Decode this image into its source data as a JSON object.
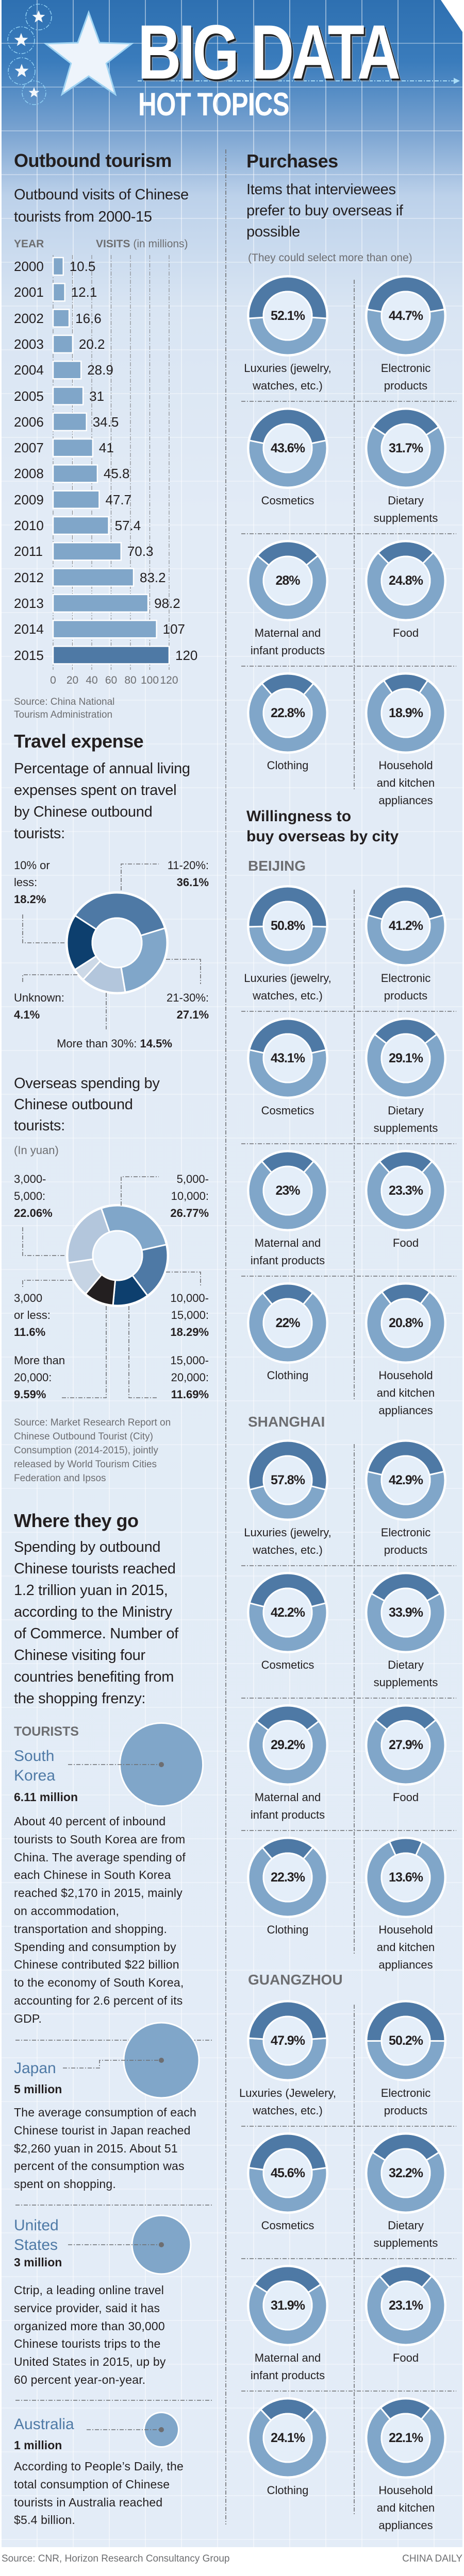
{
  "header": {
    "title": "BIG DATA",
    "subtitle": "HOT TOPICS",
    "icons": [
      "star-icon"
    ]
  },
  "colors": {
    "dark_segment": "#4e79a5",
    "light_segment": "#80a6c9",
    "bar": "#80a6c9",
    "bar_highlight": "#4e79a5",
    "country_name": "#4f7aa6",
    "bubble": "#80a6c9"
  },
  "outbound": {
    "heading": "Outbound tourism",
    "year_header": "YEAR",
    "visits_header": "VISITS",
    "visits_unit": "(in millions)",
    "source": "Source: China National\nTourism Administration"
  },
  "travel": {
    "heading": "Travel expense",
    "spending_title": "Overseas spending by\nChinese outbound\ntourists:",
    "spending_unit": "(In yuan)",
    "source": "Source: Market Research Report on\nChinese Outbound Tourist (City)\nConsumption (2014-2015), jointly\nreleased by World Tourism Cities\nFederation and Ipsos"
  },
  "where": {
    "heading": "Where they go",
    "intro": "Spending by outbound\nChinese tourists reached\n1.2 trillion yuan in 2015,\naccording to the Ministry\nof Commerce. Number of\nChinese visiting four\ncountries benefiting from\nthe shopping frenzy:",
    "tourists_label": "TOURISTS"
  },
  "purchases": {
    "heading": "Purchases",
    "note": "(They could select more than one)",
    "willingness_heading": "Willingness to\nbuy overseas by city"
  },
  "footer": {
    "source": "Source: CNR, Horizon Research Consultancy Group",
    "brand": "CHINA DAILY"
  },
  "chart_data": [
    {
      "type": "bar",
      "title": "Outbound visits of Chinese\ntourists from 2000-15",
      "ylabel": "VISITS (in millions)",
      "xlabel": "YEAR",
      "categories": [
        "2000",
        "2001",
        "2002",
        "2003",
        "2004",
        "2005",
        "2006",
        "2007",
        "2008",
        "2009",
        "2010",
        "2011",
        "2012",
        "2013",
        "2014",
        "2015"
      ],
      "values": [
        10.5,
        12.1,
        16.6,
        20.2,
        28.9,
        31,
        34.5,
        41,
        45.8,
        47.7,
        57.4,
        70.3,
        83.2,
        98.2,
        107,
        120
      ],
      "ticks": [
        "0",
        "20",
        "40",
        "60",
        "80",
        "100",
        "120"
      ],
      "xlim": [
        0,
        120
      ],
      "orientation": "horizontal",
      "grid": true
    },
    {
      "type": "pie",
      "donut": true,
      "title": "Percentage of annual living\nexpenses spent on travel\nby Chinese outbound\ntourists:",
      "items": [
        {
          "label": "11-20%:",
          "value": 36.1,
          "color": "#4e79a5"
        },
        {
          "label": "21-30%:",
          "value": 27.1,
          "color": "#80a6c9"
        },
        {
          "label": "More than 30%:",
          "value": 14.5,
          "color": "#b3c6dc"
        },
        {
          "label": "Unknown:",
          "value": 4.1,
          "color": "#cdd9e7"
        },
        {
          "label": "10% or\nless:",
          "value": 18.2,
          "color": "#0d3f6e"
        }
      ]
    },
    {
      "type": "pie",
      "donut": true,
      "title": "Overseas spending by Chinese outbound tourists:",
      "unit": "(In yuan)",
      "items": [
        {
          "label": "5,000-\n10,000:",
          "value": 26.77,
          "color": "#80a6c9"
        },
        {
          "label": "10,000-\n15,000:",
          "value": 18.29,
          "color": "#4e79a5"
        },
        {
          "label": "15,000-\n20,000:",
          "value": 11.69,
          "color": "#0d3f6e"
        },
        {
          "label": "More than\n20,000:",
          "value": 9.59,
          "color": "#231f20"
        },
        {
          "label": "3,000\nor less:",
          "value": 11.6,
          "color": "#c6d4e4"
        },
        {
          "label": "3,000-\n5,000:",
          "value": 22.06,
          "color": "#b3c6dc"
        }
      ]
    },
    {
      "type": "pie",
      "title": "Items that interviewees\nprefer to buy overseas if\npossible",
      "items": [
        {
          "label": "Luxuries (jewelry,\nwatches, etc.)",
          "value": 52.1
        },
        {
          "label": "Electronic\nproducts",
          "value": 44.7
        },
        {
          "label": "Cosmetics",
          "value": 43.6
        },
        {
          "label": "Dietary\nsupplements",
          "value": 31.7
        },
        {
          "label": "Maternal and\ninfant products",
          "value": 28
        },
        {
          "label": "Food",
          "value": 24.8
        },
        {
          "label": "Clothing",
          "value": 22.8
        },
        {
          "label": "Household\nand kitchen\nappliances",
          "value": 18.9
        }
      ]
    },
    {
      "type": "pie",
      "title": "BEIJING",
      "items": [
        {
          "label": "Luxuries (jewelry,\nwatches, etc.)",
          "value": 50.8
        },
        {
          "label": "Electronic\nproducts",
          "value": 41.2
        },
        {
          "label": "Cosmetics",
          "value": 43.1
        },
        {
          "label": "Dietary\nsupplements",
          "value": 29.1
        },
        {
          "label": "Maternal and\ninfant products",
          "value": 23
        },
        {
          "label": "Food",
          "value": 23.3
        },
        {
          "label": "Clothing",
          "value": 22
        },
        {
          "label": "Household\nand kitchen\nappliances",
          "value": 20.8
        }
      ]
    },
    {
      "type": "pie",
      "title": "SHANGHAI",
      "items": [
        {
          "label": "Luxuries (jewelry,\nwatches, etc.)",
          "value": 57.8
        },
        {
          "label": "Electronic\nproducts",
          "value": 42.9
        },
        {
          "label": "Cosmetics",
          "value": 42.2
        },
        {
          "label": "Dietary\nsupplements",
          "value": 33.9
        },
        {
          "label": "Maternal and\ninfant products",
          "value": 29.2
        },
        {
          "label": "Food",
          "value": 27.9
        },
        {
          "label": "Clothing",
          "value": 22.3
        },
        {
          "label": "Household\nand kitchen\nappliances",
          "value": 13.6
        }
      ]
    },
    {
      "type": "pie",
      "title": "GUANGZHOU",
      "items": [
        {
          "label": "Luxuries (Jewelery,\nwatches, etc.)",
          "value": 47.9
        },
        {
          "label": "Electronic\nproducts",
          "value": 50.2
        },
        {
          "label": "Cosmetics",
          "value": 45.6
        },
        {
          "label": "Dietary\nsupplements",
          "value": 32.2
        },
        {
          "label": "Maternal and\ninfant products",
          "value": 31.9
        },
        {
          "label": "Food",
          "value": 23.1
        },
        {
          "label": "Clothing",
          "value": 24.1
        },
        {
          "label": "Household\nand kitchen\nappliances",
          "value": 22.1
        }
      ]
    },
    {
      "type": "scatter",
      "bubble": true,
      "title": "TOURISTS",
      "items": [
        {
          "name": "South\nKorea",
          "value": 6.11,
          "value_label": "6.11 million",
          "text": "About 40 percent of inbound\ntourists to South Korea are from\nChina. The average spending of\neach Chinese in South Korea\nreached $2,170 in 2015, mainly\non accommodation,\ntransportation and shopping.\nSpending and consumption by\nChinese contributed $22 billion\nto the economy of South Korea,\naccounting for 2.6 percent of its\nGDP."
        },
        {
          "name": "Japan",
          "value": 5,
          "value_label": "5 million",
          "text": "The average consumption of each\nChinese tourist in Japan reached\n$2,260 yuan in 2015. About 51\npercent of the consumption was\nspent on shopping."
        },
        {
          "name": "United\nStates",
          "value": 3,
          "value_label": "3 million",
          "text": "Ctrip, a leading online travel\nservice provider, said it has\norganized more than 30,000\nChinese tourists trips to the\nUnited States in 2015, up by\n60 percent year-on-year."
        },
        {
          "name": "Australia",
          "value": 1,
          "value_label": "1 million",
          "text": "According to People’s Daily, the\ntotal consumption of Chinese\ntourists in Australia reached\n$5.4 billion."
        }
      ]
    }
  ]
}
